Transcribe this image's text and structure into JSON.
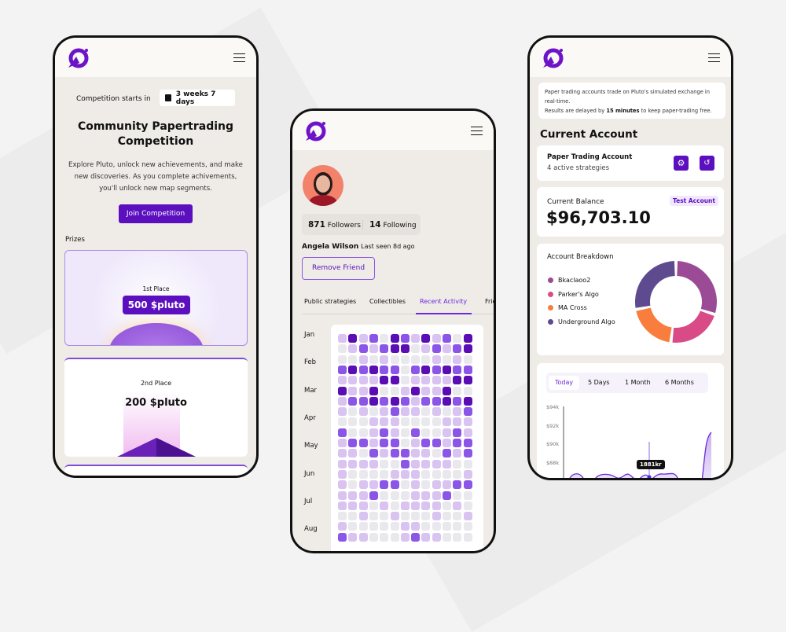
{
  "colors": {
    "brand": "#5b0fbf",
    "accent": "#7c3aed",
    "light_purple": "#d9c3f0",
    "empty": "#e9e8ec",
    "bg": "#efece7"
  },
  "competition": {
    "starts_label": "Competition starts in",
    "countdown": "3 weeks 7 days",
    "countdown_icon": "calendar-icon",
    "title_line1": "Community Papertrading",
    "title_line2": "Competition",
    "desc_line1": "Explore Pluto, unlock new achievements, and make",
    "desc_line2": "new discoveries. As you complete achivements,",
    "desc_line3": "you'll unlock new map segments.",
    "join_button": "Join Competition",
    "prizes_label": "Prizes",
    "prizes": [
      {
        "place": "1st Place",
        "amount": "500 $pluto"
      },
      {
        "place": "2nd Place",
        "amount": "200 $pluto"
      }
    ]
  },
  "profile": {
    "followers_count": "871",
    "followers_label": "Followers",
    "following_count": "14",
    "following_label": "Following",
    "name": "Angela Wilson",
    "last_seen": "Last seen 8d ago",
    "remove_button": "Remove Friend",
    "tabs": [
      {
        "label": "Public strategies"
      },
      {
        "label": "Collectibles"
      },
      {
        "label": "Recent Activity",
        "active": true
      },
      {
        "label": "Frie"
      }
    ],
    "months": [
      "Jan",
      "Feb",
      "Mar",
      "Apr",
      "May",
      "Jun",
      "Jul",
      "Aug"
    ],
    "activity_levels": [
      [
        1,
        3,
        1,
        2,
        0,
        3,
        2,
        1,
        3,
        1,
        2,
        0,
        3
      ],
      [
        0,
        1,
        2,
        1,
        2,
        3,
        3,
        0,
        1,
        2,
        1,
        2,
        3
      ],
      [
        0,
        0,
        1,
        0,
        1,
        0,
        0,
        0,
        0,
        1,
        0,
        1,
        0
      ],
      [
        2,
        3,
        2,
        3,
        2,
        2,
        0,
        2,
        3,
        2,
        3,
        2,
        2
      ],
      [
        1,
        1,
        1,
        1,
        3,
        3,
        0,
        1,
        1,
        1,
        1,
        3,
        3
      ],
      [
        3,
        1,
        1,
        3,
        0,
        0,
        1,
        3,
        1,
        1,
        3,
        0,
        0
      ],
      [
        1,
        2,
        2,
        3,
        2,
        3,
        2,
        1,
        2,
        2,
        3,
        2,
        3
      ],
      [
        1,
        0,
        1,
        0,
        1,
        2,
        1,
        1,
        0,
        1,
        0,
        1,
        2
      ],
      [
        0,
        0,
        0,
        1,
        1,
        1,
        0,
        0,
        0,
        0,
        1,
        1,
        1
      ],
      [
        2,
        0,
        0,
        1,
        2,
        1,
        0,
        2,
        0,
        0,
        1,
        2,
        1
      ],
      [
        1,
        2,
        2,
        1,
        2,
        2,
        0,
        1,
        2,
        2,
        1,
        2,
        2
      ],
      [
        1,
        1,
        0,
        2,
        1,
        2,
        2,
        1,
        1,
        0,
        2,
        1,
        2
      ],
      [
        1,
        1,
        1,
        1,
        0,
        0,
        2,
        1,
        1,
        1,
        1,
        0,
        0
      ],
      [
        1,
        0,
        0,
        0,
        0,
        1,
        1,
        1,
        0,
        0,
        0,
        0,
        1
      ],
      [
        1,
        0,
        1,
        1,
        2,
        2,
        0,
        1,
        0,
        1,
        1,
        2,
        2
      ],
      [
        1,
        1,
        1,
        2,
        0,
        0,
        0,
        1,
        1,
        1,
        2,
        0,
        0
      ],
      [
        1,
        1,
        1,
        0,
        1,
        0,
        1,
        1,
        1,
        1,
        0,
        1,
        0
      ],
      [
        0,
        0,
        1,
        0,
        0,
        1,
        0,
        0,
        0,
        1,
        0,
        0,
        1
      ],
      [
        1,
        0,
        0,
        0,
        0,
        0,
        1,
        1,
        0,
        0,
        0,
        0,
        0
      ],
      [
        2,
        1,
        1,
        0,
        0,
        0,
        1,
        2,
        1,
        1,
        0,
        0,
        0
      ]
    ],
    "level_colors": [
      "#e9e8ec",
      "#d9c3f0",
      "#8b55e8",
      "#5a0db3"
    ]
  },
  "account": {
    "info_line1": "Paper trading accounts trade on Pluto's simulated exchange in",
    "info_line2": "real-time.",
    "info_line3_pre": "Results are delayed by ",
    "info_line3_bold": "15 minutes",
    "info_line3_post": " to keep paper-trading free.",
    "section_title": "Current Account",
    "account_name": "Paper Trading Account",
    "strategies": "4 active strategies",
    "balance_label": "Current Balance",
    "badge": "Test Account",
    "balance": "$96,703.10",
    "breakdown_title": "Account Breakdown",
    "breakdown": [
      {
        "name": "Bkaclaoo2",
        "color": "#9b4b95",
        "share": 30
      },
      {
        "name": "Parker's Algo",
        "color": "#d94b86",
        "share": 22
      },
      {
        "name": "MA Cross",
        "color": "#f97d3c",
        "share": 20
      },
      {
        "name": "Underground Algo",
        "color": "#5e4a8f",
        "share": 28
      }
    ],
    "range_tabs": [
      "Today",
      "5 Days",
      "1 Month",
      "6 Months"
    ],
    "y_labels": [
      "$94k",
      "$92k",
      "$90k",
      "$88k"
    ],
    "tooltip": "1881kr"
  }
}
